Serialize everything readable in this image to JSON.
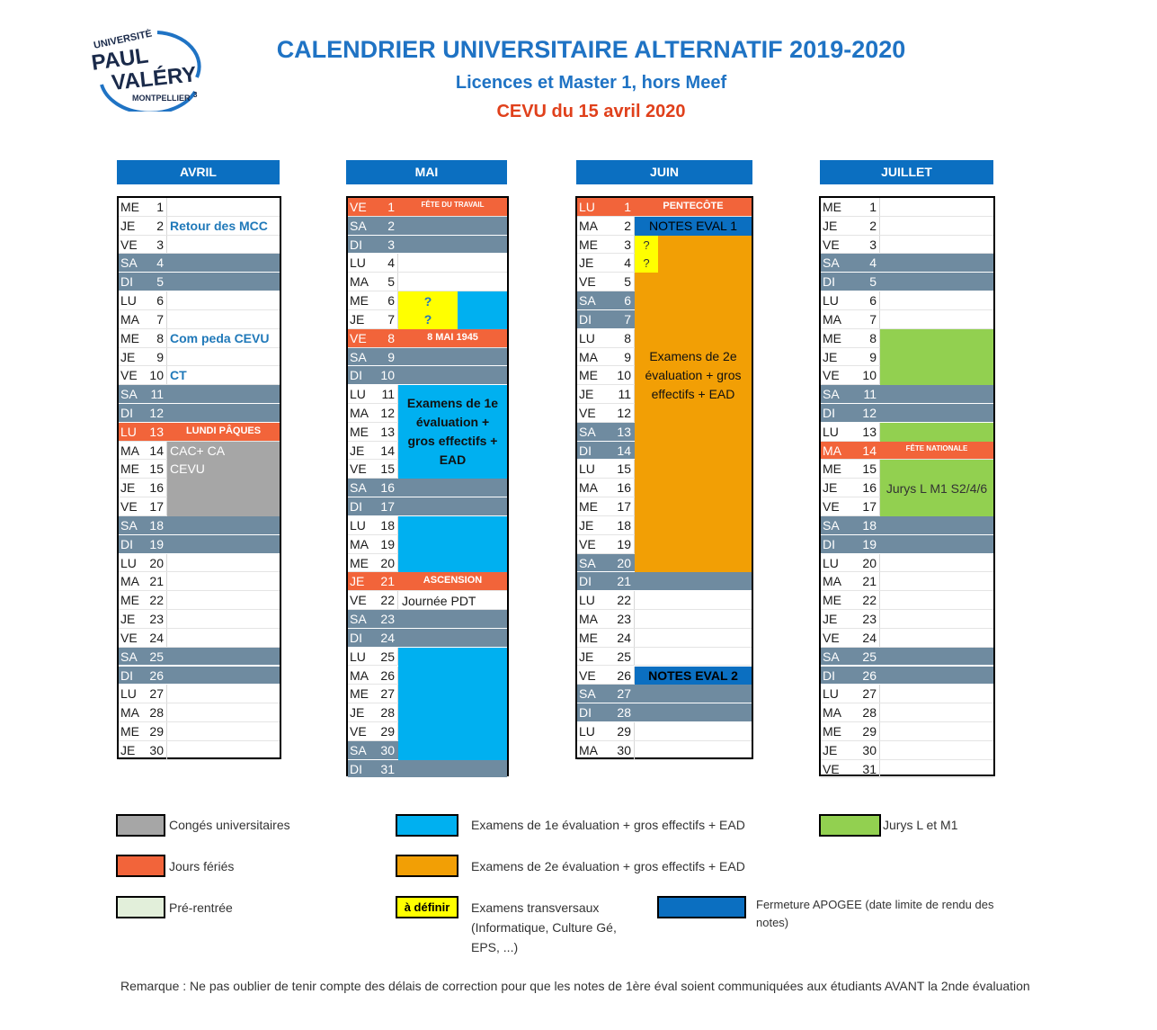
{
  "header": {
    "title": "CALENDRIER UNIVERSITAIRE ALTERNATIF 2019-2020",
    "subtitle": "Licences et Master 1, hors Meef",
    "cevu": "CEVU du 15 avril 2020"
  },
  "logo": {
    "line1": "UNIVERSITÉ",
    "line2": "PAUL",
    "line3": "VALÉRY",
    "line4": "MONTPELLIER",
    "line5": "3"
  },
  "colors": {
    "weekend": "#6f8ba0",
    "holiday": "#f2643a",
    "conges": "#a6a6a6",
    "exam1": "#00b0f0",
    "exam2": "#f29f05",
    "jurys": "#92d050",
    "prerentree": "#e2efda",
    "transversal": "#ffff00",
    "apogee": "#0b6fc1"
  },
  "months": [
    {
      "name": "AVRIL",
      "days": [
        {
          "d": "ME",
          "n": "1"
        },
        {
          "d": "JE",
          "n": "2"
        },
        {
          "d": "VE",
          "n": "3"
        },
        {
          "d": "SA",
          "n": "4",
          "t": "we"
        },
        {
          "d": "DI",
          "n": "5",
          "t": "we"
        },
        {
          "d": "LU",
          "n": "6"
        },
        {
          "d": "MA",
          "n": "7"
        },
        {
          "d": "ME",
          "n": "8"
        },
        {
          "d": "JE",
          "n": "9"
        },
        {
          "d": "VE",
          "n": "10"
        },
        {
          "d": "SA",
          "n": "11",
          "t": "we"
        },
        {
          "d": "DI",
          "n": "12",
          "t": "we"
        },
        {
          "d": "LU",
          "n": "13",
          "t": "fe",
          "f": "LUNDI PÂQUES"
        },
        {
          "d": "MA",
          "n": "14"
        },
        {
          "d": "ME",
          "n": "15"
        },
        {
          "d": "JE",
          "n": "16"
        },
        {
          "d": "VE",
          "n": "17"
        },
        {
          "d": "SA",
          "n": "18",
          "t": "we"
        },
        {
          "d": "DI",
          "n": "19",
          "t": "we"
        },
        {
          "d": "LU",
          "n": "20"
        },
        {
          "d": "MA",
          "n": "21"
        },
        {
          "d": "ME",
          "n": "22"
        },
        {
          "d": "JE",
          "n": "23"
        },
        {
          "d": "VE",
          "n": "24"
        },
        {
          "d": "SA",
          "n": "25",
          "t": "we"
        },
        {
          "d": "DI",
          "n": "26",
          "t": "we"
        },
        {
          "d": "LU",
          "n": "27"
        },
        {
          "d": "MA",
          "n": "28"
        },
        {
          "d": "ME",
          "n": "29"
        },
        {
          "d": "JE",
          "n": "30"
        }
      ]
    },
    {
      "name": "MAI",
      "days": [
        {
          "d": "VE",
          "n": "1",
          "t": "fe",
          "f": "FÊTE DU TRAVAIL"
        },
        {
          "d": "SA",
          "n": "2",
          "t": "we"
        },
        {
          "d": "DI",
          "n": "3",
          "t": "we"
        },
        {
          "d": "LU",
          "n": "4"
        },
        {
          "d": "MA",
          "n": "5"
        },
        {
          "d": "ME",
          "n": "6"
        },
        {
          "d": "JE",
          "n": "7"
        },
        {
          "d": "VE",
          "n": "8",
          "t": "fe",
          "f": "8 MAI 1945"
        },
        {
          "d": "SA",
          "n": "9",
          "t": "we"
        },
        {
          "d": "DI",
          "n": "10",
          "t": "we"
        },
        {
          "d": "LU",
          "n": "11"
        },
        {
          "d": "MA",
          "n": "12"
        },
        {
          "d": "ME",
          "n": "13"
        },
        {
          "d": "JE",
          "n": "14"
        },
        {
          "d": "VE",
          "n": "15"
        },
        {
          "d": "SA",
          "n": "16",
          "t": "we"
        },
        {
          "d": "DI",
          "n": "17",
          "t": "we"
        },
        {
          "d": "LU",
          "n": "18"
        },
        {
          "d": "MA",
          "n": "19"
        },
        {
          "d": "ME",
          "n": "20"
        },
        {
          "d": "JE",
          "n": "21",
          "t": "fe",
          "f": "ASCENSION"
        },
        {
          "d": "VE",
          "n": "22"
        },
        {
          "d": "SA",
          "n": "23",
          "t": "we"
        },
        {
          "d": "DI",
          "n": "24",
          "t": "we"
        },
        {
          "d": "LU",
          "n": "25"
        },
        {
          "d": "MA",
          "n": "26"
        },
        {
          "d": "ME",
          "n": "27"
        },
        {
          "d": "JE",
          "n": "28"
        },
        {
          "d": "VE",
          "n": "29"
        },
        {
          "d": "SA",
          "n": "30",
          "t": "we"
        },
        {
          "d": "DI",
          "n": "31",
          "t": "we"
        }
      ]
    },
    {
      "name": "JUIN",
      "days": [
        {
          "d": "LU",
          "n": "1",
          "t": "fe",
          "f": "PENTECÔTE"
        },
        {
          "d": "MA",
          "n": "2"
        },
        {
          "d": "ME",
          "n": "3"
        },
        {
          "d": "JE",
          "n": "4"
        },
        {
          "d": "VE",
          "n": "5"
        },
        {
          "d": "SA",
          "n": "6",
          "t": "we"
        },
        {
          "d": "DI",
          "n": "7",
          "t": "we"
        },
        {
          "d": "LU",
          "n": "8"
        },
        {
          "d": "MA",
          "n": "9"
        },
        {
          "d": "ME",
          "n": "10"
        },
        {
          "d": "JE",
          "n": "11"
        },
        {
          "d": "VE",
          "n": "12"
        },
        {
          "d": "SA",
          "n": "13",
          "t": "we"
        },
        {
          "d": "DI",
          "n": "14",
          "t": "we"
        },
        {
          "d": "LU",
          "n": "15"
        },
        {
          "d": "MA",
          "n": "16"
        },
        {
          "d": "ME",
          "n": "17"
        },
        {
          "d": "JE",
          "n": "18"
        },
        {
          "d": "VE",
          "n": "19"
        },
        {
          "d": "SA",
          "n": "20",
          "t": "we"
        },
        {
          "d": "DI",
          "n": "21",
          "t": "we"
        },
        {
          "d": "LU",
          "n": "22"
        },
        {
          "d": "MA",
          "n": "23"
        },
        {
          "d": "ME",
          "n": "24"
        },
        {
          "d": "JE",
          "n": "25"
        },
        {
          "d": "VE",
          "n": "26"
        },
        {
          "d": "SA",
          "n": "27",
          "t": "we"
        },
        {
          "d": "DI",
          "n": "28",
          "t": "we"
        },
        {
          "d": "LU",
          "n": "29"
        },
        {
          "d": "MA",
          "n": "30"
        }
      ]
    },
    {
      "name": "JUILLET",
      "days": [
        {
          "d": "ME",
          "n": "1"
        },
        {
          "d": "JE",
          "n": "2"
        },
        {
          "d": "VE",
          "n": "3"
        },
        {
          "d": "SA",
          "n": "4",
          "t": "we"
        },
        {
          "d": "DI",
          "n": "5",
          "t": "we"
        },
        {
          "d": "LU",
          "n": "6"
        },
        {
          "d": "MA",
          "n": "7"
        },
        {
          "d": "ME",
          "n": "8"
        },
        {
          "d": "JE",
          "n": "9"
        },
        {
          "d": "VE",
          "n": "10"
        },
        {
          "d": "SA",
          "n": "11",
          "t": "we"
        },
        {
          "d": "DI",
          "n": "12",
          "t": "we"
        },
        {
          "d": "LU",
          "n": "13"
        },
        {
          "d": "MA",
          "n": "14",
          "t": "fe",
          "f": "FÊTE NATIONALE"
        },
        {
          "d": "ME",
          "n": "15"
        },
        {
          "d": "JE",
          "n": "16"
        },
        {
          "d": "VE",
          "n": "17"
        },
        {
          "d": "SA",
          "n": "18",
          "t": "we"
        },
        {
          "d": "DI",
          "n": "19",
          "t": "we"
        },
        {
          "d": "LU",
          "n": "20"
        },
        {
          "d": "MA",
          "n": "21"
        },
        {
          "d": "ME",
          "n": "22"
        },
        {
          "d": "JE",
          "n": "23"
        },
        {
          "d": "VE",
          "n": "24"
        },
        {
          "d": "SA",
          "n": "25",
          "t": "we"
        },
        {
          "d": "DI",
          "n": "26",
          "t": "we"
        },
        {
          "d": "LU",
          "n": "27"
        },
        {
          "d": "MA",
          "n": "28"
        },
        {
          "d": "ME",
          "n": "29"
        },
        {
          "d": "JE",
          "n": "30"
        },
        {
          "d": "VE",
          "n": "31"
        }
      ]
    }
  ],
  "annotations": {
    "avril_mcc": "Retour des MCC",
    "avril_com": "Com peda CEVU",
    "avril_ct": "CT",
    "avril_cac": "CAC+ CA",
    "avril_cevu": "CEVU",
    "mai_q1": "?",
    "mai_q2": "?",
    "mai_exam": "Examens de 1e évaluation + gros effectifs + EAD",
    "mai_pdt": "Journée PDT",
    "juin_notes1": "NOTES EVAL 1",
    "juin_q1": "?",
    "juin_q2": "?",
    "juin_exam": "Examens de 2e évaluation + gros effectifs + EAD",
    "juin_notes2": "NOTES EVAL 2",
    "juil_jurys": "Jurys L M1 S2/4/6"
  },
  "legend": {
    "conges": "Congés universitaires",
    "feries": "Jours fériés",
    "prerentree": "Pré-rentrée",
    "exam1": "Examens de 1e évaluation + gros effectifs + EAD",
    "exam2": "Examens de 2e évaluation + gros effectifs + EAD",
    "adefinir": "à définir",
    "transversaux": "Examens transversaux (Informatique, Culture Gé, EPS, ...)",
    "jurys": "Jurys L et M1",
    "apogee": "Fermeture APOGEE (date limite de rendu des notes)"
  },
  "remark": "Remarque : Ne pas oublier de tenir compte des délais de correction pour que les notes de 1ère éval soient communiquées aux étudiants AVANT la 2nde évaluation"
}
